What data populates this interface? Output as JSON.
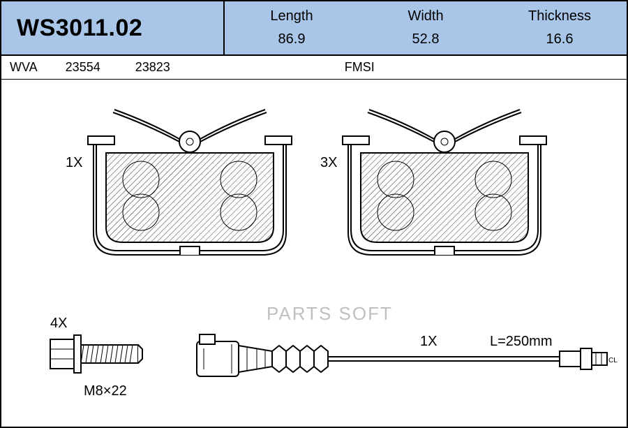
{
  "colors": {
    "header_bg": "#a9c6e8",
    "border": "#000000",
    "hatch": "#000000",
    "outline": "#000000",
    "watermark": "#c0c0c0",
    "text": "#000000",
    "bg": "#ffffff"
  },
  "part_number": "WS3011.02",
  "dimensions": {
    "length": {
      "label": "Length",
      "value": "86.9"
    },
    "width": {
      "label": "Width",
      "value": "52.8"
    },
    "thickness": {
      "label": "Thickness",
      "value": "16.6"
    }
  },
  "codes": {
    "wva_label": "WVA",
    "wva_codes": [
      "23554",
      "23823"
    ],
    "fmsi_label": "FMSI"
  },
  "pads": {
    "left": {
      "qty": "1X"
    },
    "right": {
      "qty": "3X"
    }
  },
  "bolt": {
    "qty": "4X",
    "spec": "M8×22"
  },
  "sensor": {
    "qty": "1X",
    "length_label": "L=250mm"
  },
  "watermark": "PARTS SOFT",
  "svg": {
    "label_fontsize": 20,
    "stroke_width_main": 2,
    "stroke_width_thin": 1,
    "hatch_spacing": 6,
    "hatch_angle": 45
  }
}
